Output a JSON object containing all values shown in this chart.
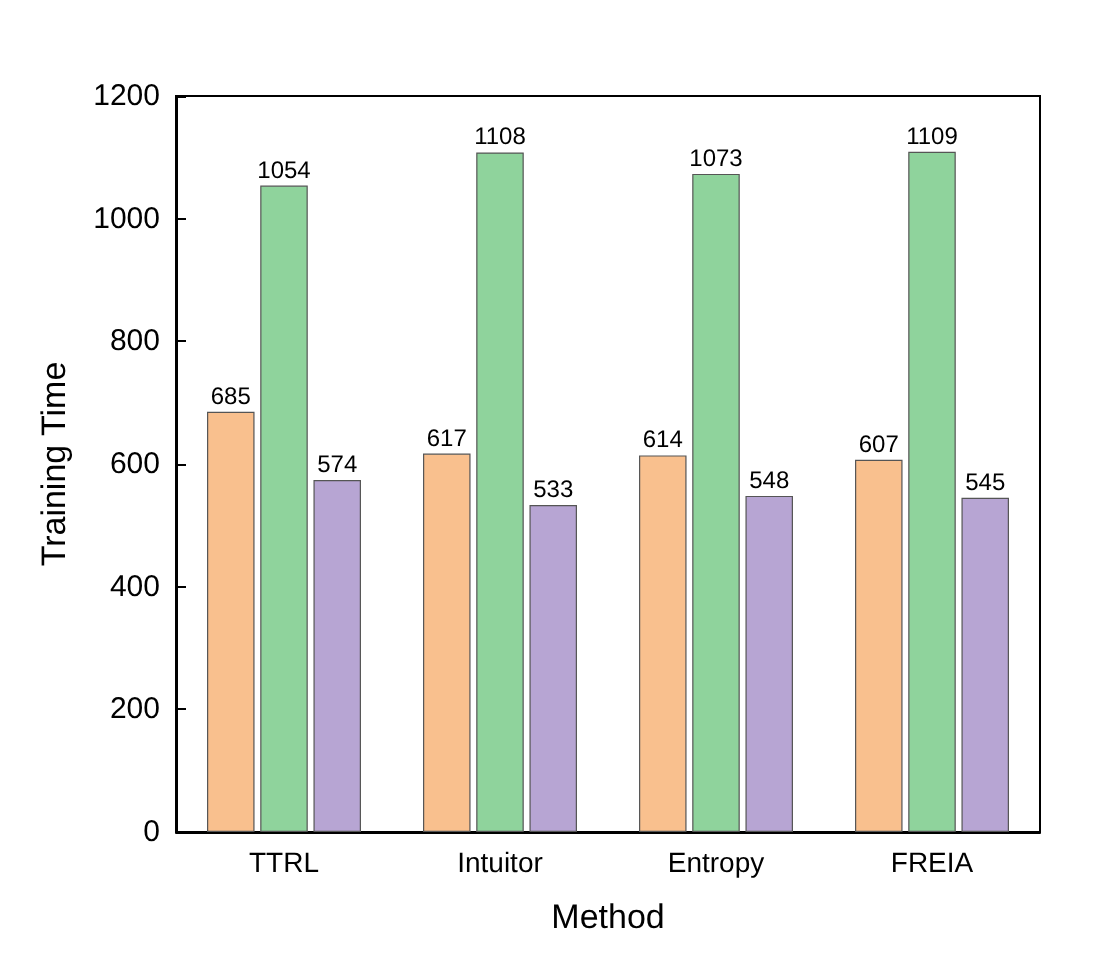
{
  "chart_data": {
    "type": "bar",
    "xlabel": "Method",
    "ylabel": "Training Time",
    "categories": [
      "TTRL",
      "Intuitor",
      "Entropy",
      "FREIA"
    ],
    "series": [
      {
        "color": "#f9c08e",
        "values": [
          685,
          617,
          614,
          607
        ]
      },
      {
        "color": "#8fd39c",
        "values": [
          1054,
          1108,
          1073,
          1109
        ]
      },
      {
        "color": "#b7a5d3",
        "values": [
          574,
          533,
          548,
          545
        ]
      }
    ],
    "ylim": [
      0,
      1200
    ],
    "yticks": [
      0,
      200,
      400,
      600,
      800,
      1000,
      1200
    ],
    "data_labels": true,
    "grid": false
  }
}
